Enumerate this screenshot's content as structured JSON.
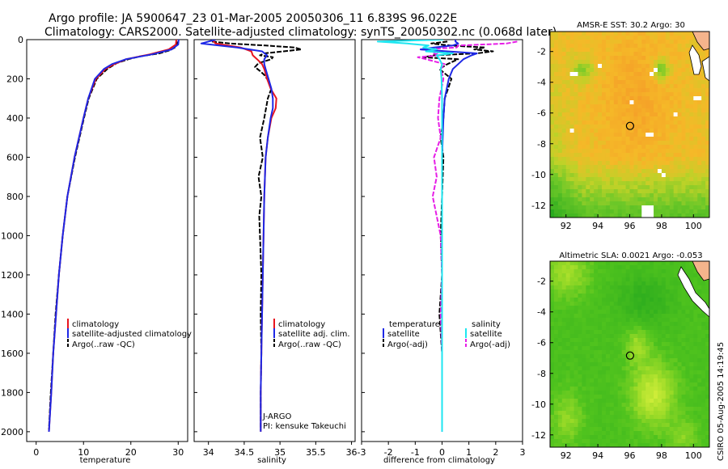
{
  "header": {
    "title_line1": "Argo profile: JA 5900647_23 01-Mar-2005 20050306_11 6.839S 96.022E",
    "title_line2": "Climatology: CARS2000. Satellite-adjusted climatology: synTS_20050302.nc (0.068d later)"
  },
  "side_label": "CSIRO 05-Aug-2005 14:19:45",
  "colors": {
    "clim": "#e8141e",
    "sat": "#1e28e6",
    "argo": "#000000",
    "sal_sat": "#1ee6f0",
    "sal_argo": "#e61ee6"
  },
  "chart_data": [
    {
      "type": "line",
      "id": "temperature",
      "xlabel": "temperature",
      "ylabel": "",
      "xlim": [
        -2,
        32
      ],
      "ylim": [
        2050,
        0
      ],
      "xticks": [
        0,
        10,
        20,
        30
      ],
      "yticks": [
        0,
        200,
        400,
        600,
        800,
        1000,
        1200,
        1400,
        1600,
        1800,
        2000
      ],
      "legend": [
        "climatology",
        "satellite-adjusted climatology",
        "Argo(..raw -QC)"
      ],
      "series": [
        {
          "name": "climatology",
          "depth": [
            0,
            25,
            50,
            75,
            100,
            125,
            150,
            200,
            300,
            400,
            600,
            800,
            1000,
            1200,
            1400,
            1600,
            1800,
            2000
          ],
          "values": [
            29.6,
            29.5,
            28,
            24,
            19,
            16.5,
            14.6,
            12.6,
            11,
            10,
            8.1,
            6.6,
            5.6,
            4.8,
            4.2,
            3.6,
            3.2,
            2.7
          ]
        },
        {
          "name": "satellite-adjusted climatology",
          "depth": [
            0,
            25,
            50,
            75,
            100,
            125,
            150,
            200,
            300,
            400,
            600,
            800,
            1000,
            1200,
            1400,
            1600,
            1800,
            2000
          ],
          "values": [
            30.1,
            30,
            28.6,
            24.5,
            19,
            16,
            14.3,
            12.4,
            11,
            10,
            8.1,
            6.6,
            5.6,
            4.8,
            4.2,
            3.6,
            3.2,
            2.7
          ]
        },
        {
          "name": "Argo(..raw -QC)",
          "depth": [
            10,
            20,
            30,
            40,
            55,
            70,
            85,
            100,
            120,
            150,
            200,
            300,
            400,
            600,
            800,
            1000,
            1200,
            1400,
            1600,
            1800,
            1990
          ],
          "values": [
            29.9,
            29.8,
            29.6,
            29.3,
            28.2,
            26,
            22,
            19.5,
            17,
            15,
            12.8,
            11.1,
            10.1,
            8.2,
            6.6,
            5.6,
            4.8,
            4.1,
            3.6,
            3.1,
            2.7
          ]
        }
      ]
    },
    {
      "type": "line",
      "id": "salinity",
      "xlabel": "salinity",
      "ylabel": "",
      "xlim": [
        33.8,
        36.05
      ],
      "ylim": [
        2050,
        0
      ],
      "xticks": [
        34,
        34.5,
        35,
        35.5,
        36
      ],
      "legend": [
        "climatology",
        "satellite adj. clim.",
        "Argo(..raw -QC)"
      ],
      "annotations": [
        "J-ARGO",
        "PI: kensuke Takeuchi"
      ],
      "series": [
        {
          "name": "climatology",
          "depth": [
            0,
            20,
            40,
            60,
            80,
            100,
            125,
            150,
            200,
            250,
            300,
            350,
            400,
            500,
            600,
            800,
            1000,
            1200,
            1400,
            1600,
            1800,
            2000
          ],
          "values": [
            34.05,
            34.1,
            34.45,
            34.6,
            34.62,
            34.68,
            34.75,
            34.78,
            34.82,
            34.87,
            34.95,
            34.94,
            34.88,
            34.83,
            34.8,
            34.78,
            34.77,
            34.76,
            34.75,
            34.74,
            34.73,
            34.73
          ]
        },
        {
          "name": "satellite adj. clim.",
          "depth": [
            0,
            20,
            40,
            60,
            80,
            100,
            125,
            150,
            200,
            250,
            300,
            350,
            400,
            500,
            600,
            800,
            1000,
            1200,
            1400,
            1600,
            1800,
            2000
          ],
          "values": [
            34.1,
            33.9,
            34.4,
            34.75,
            34.82,
            34.78,
            34.78,
            34.8,
            34.84,
            34.88,
            34.9,
            34.9,
            34.87,
            34.83,
            34.8,
            34.78,
            34.77,
            34.76,
            34.75,
            34.74,
            34.73,
            34.73
          ]
        },
        {
          "name": "Argo(..raw -QC)",
          "depth": [
            10,
            20,
            30,
            40,
            50,
            60,
            70,
            80,
            90,
            100,
            120,
            140,
            160,
            180,
            200,
            250,
            300,
            400,
            500,
            600,
            700,
            800,
            900,
            1000,
            1200,
            1400,
            1600,
            1800,
            1990
          ],
          "values": [
            34.05,
            34.3,
            34.8,
            35.2,
            35.3,
            35.05,
            34.78,
            34.72,
            34.9,
            34.88,
            34.7,
            34.65,
            34.72,
            34.78,
            34.82,
            34.88,
            34.83,
            34.78,
            34.72,
            34.76,
            34.7,
            34.74,
            34.71,
            34.72,
            34.74,
            34.73,
            34.74,
            34.73,
            34.73
          ]
        }
      ]
    },
    {
      "type": "line",
      "id": "difference",
      "xlabel": "difference from climatology",
      "ylabel": "",
      "xlim": [
        -3,
        3
      ],
      "ylim": [
        2050,
        0
      ],
      "xticks": [
        -3,
        -2,
        -1,
        0,
        1,
        2,
        3
      ],
      "legend_left_title": "temperature",
      "legend_right_title": "salinity",
      "legend_left": [
        "satellite",
        "Argo(-adj)"
      ],
      "legend_right": [
        "satellite",
        "Argo(-adj)"
      ],
      "series": [
        {
          "name": "temperature satellite",
          "depth": [
            0,
            10,
            20,
            30,
            40,
            50,
            60,
            70,
            80,
            100,
            125,
            150,
            200,
            300,
            400,
            600,
            800,
            1000,
            1200,
            1400,
            1600,
            1800,
            2000
          ],
          "values": [
            0.5,
            0.5,
            0.6,
            0.4,
            -0.3,
            -0.8,
            0.2,
            1.3,
            1.1,
            0.8,
            0.6,
            0.4,
            0.25,
            0.1,
            0.05,
            0,
            0,
            0,
            0,
            0,
            0,
            0,
            0
          ]
        },
        {
          "name": "temperature Argo(-adj)",
          "depth": [
            10,
            20,
            30,
            40,
            50,
            60,
            70,
            80,
            90,
            100,
            125,
            150,
            200,
            300,
            400,
            500,
            600,
            800,
            1000,
            1200,
            1400,
            1600,
            1800,
            1990
          ],
          "values": [
            0.2,
            -0.4,
            0.3,
            1.6,
            1.2,
            1.9,
            1.3,
            -0.3,
            -0.7,
            0.6,
            0.2,
            -0.1,
            0.35,
            0.1,
            0.05,
            -0.05,
            0.05,
            0,
            -0.05,
            0,
            -0.1,
            0,
            0,
            0
          ]
        },
        {
          "name": "salinity satellite",
          "depth": [
            0,
            10,
            20,
            30,
            40,
            50,
            60,
            70,
            80,
            100,
            125,
            150,
            200,
            300,
            400,
            600,
            800,
            1000,
            1200,
            1400,
            1600,
            1800,
            2000
          ],
          "values": [
            0.05,
            -2.4,
            -1.3,
            -0.5,
            -0.7,
            -0.2,
            -0.6,
            0.4,
            -0.2,
            -0.1,
            0,
            -0.05,
            -0.02,
            0,
            0,
            0,
            0,
            0,
            0,
            0,
            0,
            0,
            0
          ]
        },
        {
          "name": "salinity Argo(-adj)",
          "depth": [
            10,
            20,
            30,
            40,
            50,
            60,
            70,
            80,
            90,
            100,
            125,
            150,
            200,
            300,
            400,
            500,
            600,
            700,
            800,
            1000,
            1200,
            1400,
            1600,
            1800,
            1990
          ],
          "values": [
            2.8,
            2.4,
            0.6,
            0.55,
            -0.8,
            0.05,
            -0.3,
            -0.1,
            -0.9,
            -0.6,
            0.1,
            -0.05,
            0.05,
            -0.1,
            -0.15,
            -0.05,
            -0.3,
            -0.2,
            -0.35,
            -0.05,
            0,
            -0.05,
            0,
            0,
            0
          ]
        }
      ]
    },
    {
      "type": "heatmap",
      "id": "sst_map",
      "title": "AMSR-E SST: 30.2 Argo: 30",
      "xlim": [
        91,
        101
      ],
      "ylim": [
        -12.8,
        -0.7
      ],
      "xticks": [
        92,
        94,
        96,
        98,
        100
      ],
      "yticks": [
        -2,
        -4,
        -6,
        -8,
        -10,
        -12
      ],
      "marker": {
        "lon": 96.02,
        "lat": -6.84
      }
    },
    {
      "type": "heatmap",
      "id": "sla_map",
      "title": "Altimetric SLA: 0.0021 Argo: -0.053",
      "xlim": [
        91,
        101
      ],
      "ylim": [
        -12.8,
        -0.7
      ],
      "xticks": [
        92,
        94,
        96,
        98,
        100
      ],
      "yticks": [
        -2,
        -4,
        -6,
        -8,
        -10,
        -12
      ],
      "marker": {
        "lon": 96.02,
        "lat": -6.84
      }
    }
  ]
}
